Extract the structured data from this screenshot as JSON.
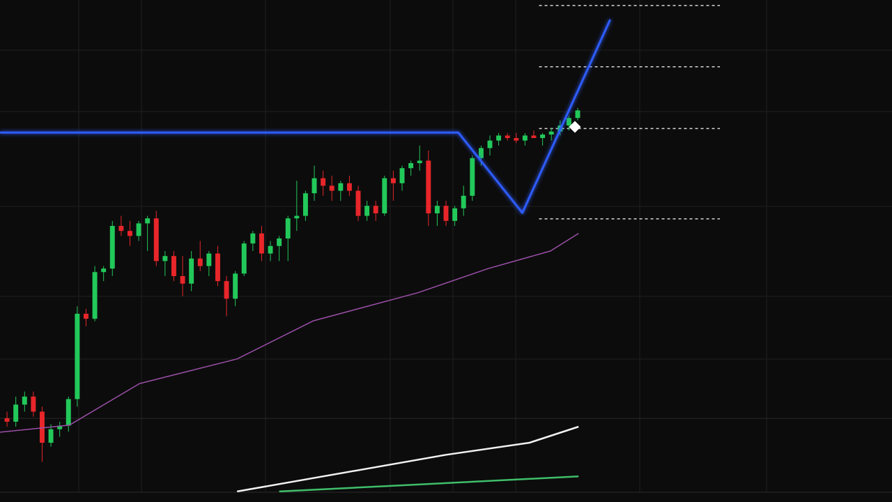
{
  "chart_data": {
    "type": "candlestick",
    "xlim": [
      -0.8,
      100.8
    ],
    "ylim": [
      0,
      100
    ],
    "grid": true,
    "up_color": "#22c95a",
    "down_color": "#e8262a",
    "open": [
      16.7,
      16.0,
      19.4,
      21.0,
      18.0,
      11.8,
      14.5,
      15.2,
      20.5,
      37.5,
      36.5,
      45.8,
      46.5,
      55.0,
      54.0,
      53.0,
      55.5,
      56.5,
      48.0,
      49.0,
      45.0,
      43.5,
      48.5,
      47.0,
      49.5,
      44.0,
      40.5,
      45.5,
      51.5,
      53.5,
      49.5,
      51.0,
      52.5,
      56.5,
      57.0,
      61.5,
      64.5,
      63.0,
      62.0,
      63.5,
      62.0,
      57.0,
      59.0,
      57.5,
      64.5,
      63.5,
      66.5,
      67.5,
      68.0,
      57.5,
      59.0,
      56.0,
      58.5,
      61.0,
      68.5,
      70.5,
      72.0,
      73.0,
      72.5,
      72.0,
      73.0,
      72.5,
      73.2,
      73.8,
      75.0,
      76.5
    ],
    "high": [
      18,
      21,
      22,
      22,
      19,
      15.5,
      16,
      21,
      39,
      38.5,
      47,
      47,
      56,
      57,
      56,
      56,
      57,
      58,
      50,
      50,
      49,
      50,
      52,
      50,
      51,
      45,
      46,
      52,
      54,
      55,
      52,
      53,
      57,
      64,
      62,
      67,
      66,
      65,
      64,
      65,
      63,
      60,
      60,
      65,
      66,
      67,
      68,
      71,
      70,
      60,
      60,
      59,
      63,
      69,
      71,
      73,
      73.5,
      73.5,
      73.5,
      73.5,
      74,
      73.5,
      74.5,
      76,
      77,
      78.5
    ],
    "low": [
      15,
      15,
      18,
      17,
      8,
      11,
      13,
      14,
      19,
      35,
      36,
      44,
      45,
      53,
      51,
      52,
      50,
      47,
      45,
      44,
      41,
      42,
      46,
      45,
      43,
      37,
      39,
      45,
      50,
      48,
      48,
      48,
      48,
      54,
      56,
      60,
      61,
      60,
      60,
      61,
      56,
      56,
      56,
      57,
      60,
      62,
      65,
      66,
      55,
      55,
      55,
      55,
      57,
      60,
      67,
      69,
      71,
      72,
      71.5,
      71,
      72.5,
      71,
      72,
      73,
      74,
      76
    ],
    "close": [
      16.0,
      19.4,
      21.0,
      18.0,
      11.8,
      14.5,
      15.2,
      20.5,
      37.5,
      36.5,
      45.8,
      46.5,
      55.0,
      54.0,
      53.0,
      55.5,
      56.5,
      48.0,
      49.0,
      45.0,
      43.5,
      48.5,
      47.0,
      49.5,
      44.0,
      40.5,
      45.5,
      51.5,
      53.5,
      49.5,
      51.0,
      52.5,
      56.5,
      57.0,
      61.5,
      64.5,
      63.0,
      62.0,
      63.5,
      62.0,
      57.0,
      59.0,
      57.5,
      64.5,
      63.5,
      66.5,
      67.5,
      68.0,
      57.5,
      59.0,
      56.0,
      58.5,
      61.0,
      68.5,
      70.5,
      72.0,
      73.0,
      72.5,
      72.0,
      73.0,
      72.5,
      73.2,
      73.8,
      75.0,
      76.5,
      78.0
    ],
    "lines": [
      {
        "color": "#9b4fa8",
        "width": 1.5,
        "x": [
          -0.8,
          7.1,
          15.1,
          26.2,
          34.9,
          46.8,
          54.8,
          61.9,
          65.1
        ],
        "values": [
          13.9,
          15.3,
          23.6,
          28.5,
          36.1,
          41.7,
          46.5,
          50.0,
          53.5
        ]
      },
      {
        "color": "#2f5cff",
        "width": 3,
        "glow": true,
        "x": [
          -0.8,
          51.4,
          58.7,
          68.7
        ],
        "values": [
          73.6,
          73.6,
          57.6,
          96.1
        ]
      },
      {
        "color": "#f2f2f2",
        "width": 2.5,
        "x": [
          26.2,
          50.0,
          59.5,
          65.1
        ],
        "values": [
          2.1,
          9.4,
          11.8,
          15.0
        ]
      },
      {
        "color": "#3fbf6a",
        "width": 2.5,
        "x": [
          31.0,
          65.1
        ],
        "values": [
          2.1,
          5.1
        ]
      }
    ],
    "levels": {
      "values": [
        98.9,
        86.7,
        74.4,
        56.4
      ],
      "x_range": [
        60.6,
        81.2
      ],
      "color": "#d8d8d8"
    }
  }
}
